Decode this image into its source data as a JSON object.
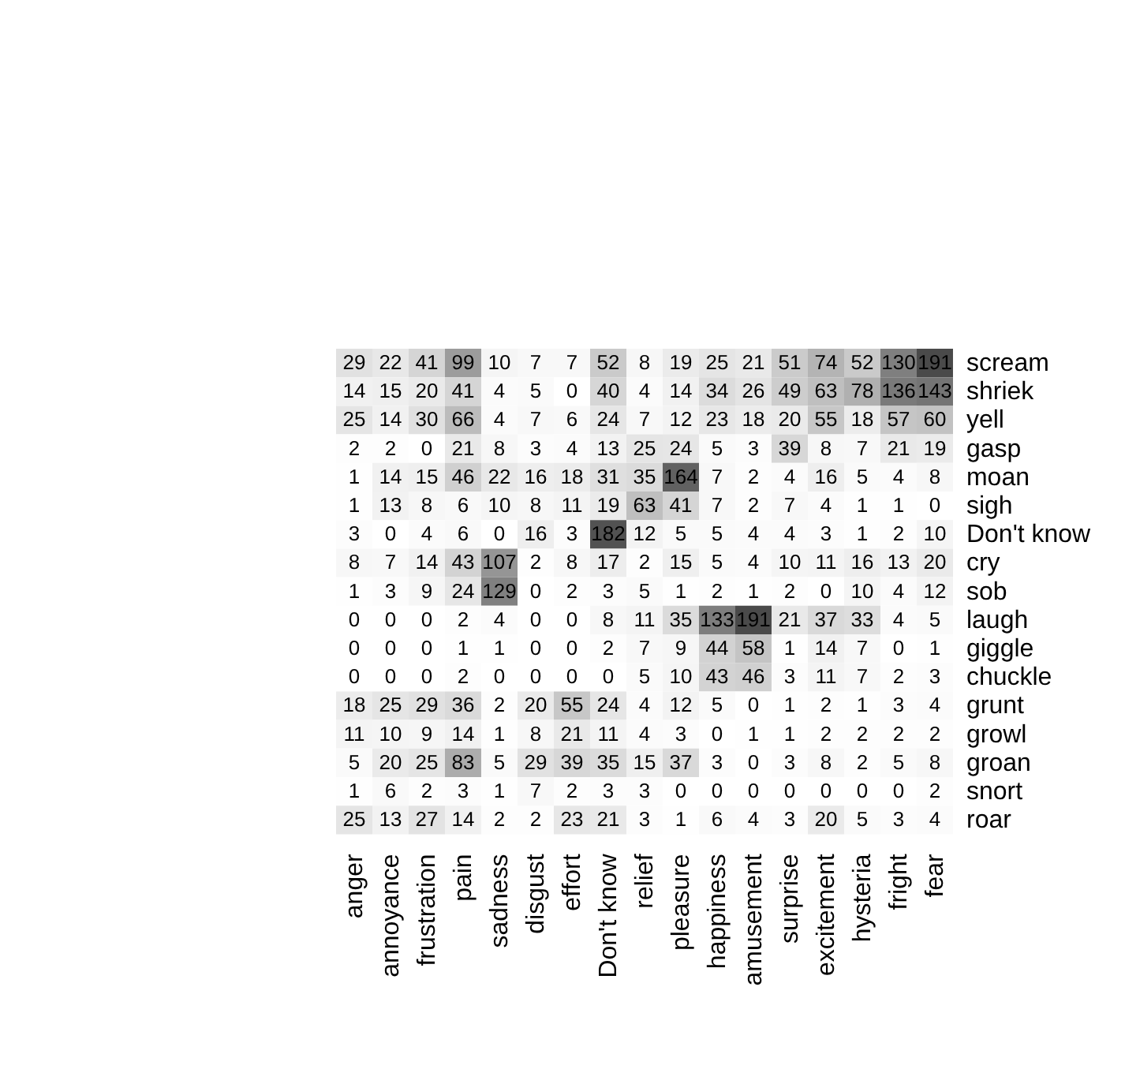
{
  "chart_data": {
    "type": "heatmap",
    "categories": [
      "anger",
      "annoyance",
      "frustration",
      "pain",
      "sadness",
      "disgust",
      "effort",
      "Don't know",
      "relief",
      "pleasure",
      "happiness",
      "amusement",
      "surprise",
      "excitement",
      "hysteria",
      "fright",
      "fear"
    ],
    "y_categories": [
      "scream",
      "shriek",
      "yell",
      "gasp",
      "moan",
      "sigh",
      "Don't know",
      "cry",
      "sob",
      "laugh",
      "giggle",
      "chuckle",
      "grunt",
      "growl",
      "groan",
      "snort",
      "roar"
    ],
    "data_labels": true,
    "cells": [
      [
        29,
        22,
        41,
        99,
        10,
        7,
        7,
        52,
        8,
        19,
        25,
        21,
        51,
        74,
        52,
        130,
        191
      ],
      [
        14,
        15,
        20,
        41,
        4,
        5,
        0,
        40,
        4,
        14,
        34,
        26,
        49,
        63,
        78,
        136,
        143
      ],
      [
        25,
        14,
        30,
        66,
        4,
        7,
        6,
        24,
        7,
        12,
        23,
        18,
        20,
        55,
        18,
        57,
        60
      ],
      [
        2,
        2,
        0,
        21,
        8,
        3,
        4,
        13,
        25,
        24,
        5,
        3,
        39,
        8,
        7,
        21,
        19
      ],
      [
        1,
        14,
        15,
        46,
        22,
        16,
        18,
        31,
        35,
        164,
        7,
        2,
        4,
        16,
        5,
        4,
        8
      ],
      [
        1,
        13,
        8,
        6,
        10,
        8,
        11,
        19,
        63,
        41,
        7,
        2,
        7,
        4,
        1,
        1,
        0
      ],
      [
        3,
        0,
        4,
        6,
        0,
        16,
        3,
        182,
        12,
        5,
        5,
        4,
        4,
        3,
        1,
        2,
        10
      ],
      [
        8,
        7,
        14,
        43,
        107,
        2,
        8,
        17,
        2,
        15,
        5,
        4,
        10,
        11,
        16,
        13,
        20
      ],
      [
        1,
        3,
        9,
        24,
        129,
        0,
        2,
        3,
        5,
        1,
        2,
        1,
        2,
        0,
        10,
        4,
        12
      ],
      [
        0,
        0,
        0,
        2,
        4,
        0,
        0,
        8,
        11,
        35,
        133,
        191,
        21,
        37,
        33,
        4,
        5
      ],
      [
        0,
        0,
        0,
        1,
        1,
        0,
        0,
        2,
        7,
        9,
        44,
        58,
        1,
        14,
        7,
        0,
        1
      ],
      [
        0,
        0,
        0,
        2,
        0,
        0,
        0,
        0,
        5,
        10,
        43,
        46,
        3,
        11,
        7,
        2,
        3
      ],
      [
        18,
        25,
        29,
        36,
        2,
        20,
        55,
        24,
        4,
        12,
        5,
        0,
        1,
        2,
        1,
        3,
        4
      ],
      [
        11,
        10,
        9,
        14,
        1,
        8,
        21,
        11,
        4,
        3,
        0,
        1,
        1,
        2,
        2,
        2,
        2
      ],
      [
        5,
        20,
        25,
        83,
        5,
        29,
        39,
        35,
        15,
        37,
        3,
        0,
        3,
        8,
        2,
        5,
        8
      ],
      [
        1,
        6,
        2,
        3,
        1,
        7,
        2,
        3,
        3,
        0,
        0,
        0,
        0,
        0,
        0,
        0,
        2
      ],
      [
        25,
        13,
        27,
        14,
        2,
        2,
        23,
        21,
        3,
        1,
        6,
        4,
        3,
        20,
        5,
        3,
        4
      ]
    ]
  }
}
